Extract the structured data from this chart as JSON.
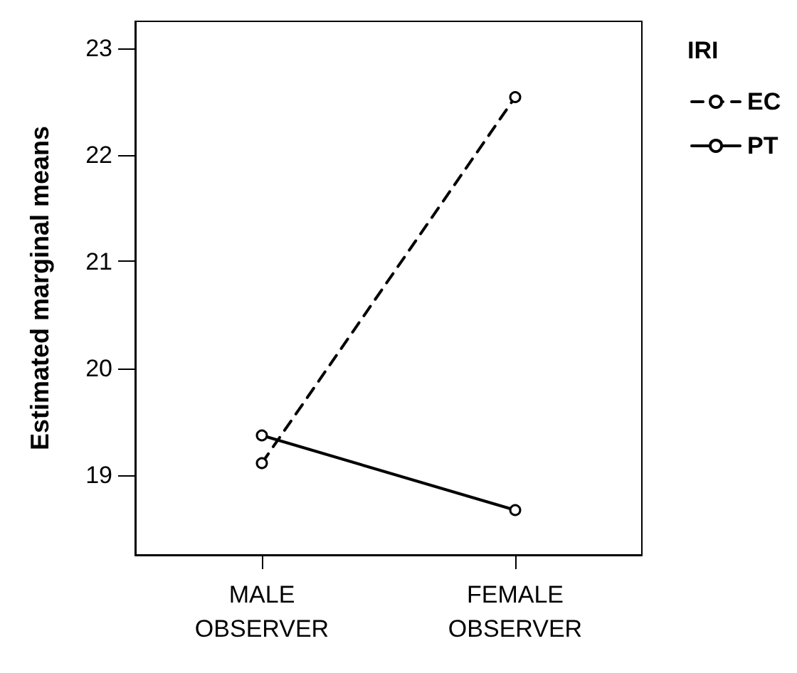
{
  "chart_data": {
    "type": "line",
    "ylabel": "Estimated marginal means",
    "legend_title": "IRI",
    "categories": [
      "MALE\nOBSERVER",
      "FEMALE\nOBSERVER"
    ],
    "series": [
      {
        "name": "EC",
        "color": "#000000",
        "values": [
          19.11,
          22.54
        ],
        "line_style": "dashed",
        "marker": "circle"
      },
      {
        "name": "PT",
        "color": "#000000",
        "values": [
          19.37,
          18.67
        ],
        "line_style": "solid",
        "marker": "circle"
      }
    ],
    "ylim": [
      18.25,
      23.25
    ],
    "yticks": [
      19,
      20,
      21,
      22,
      23
    ],
    "grid": false,
    "legend": "top right"
  }
}
